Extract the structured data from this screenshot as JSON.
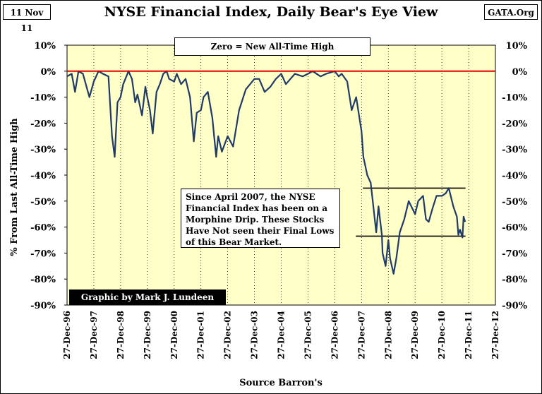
{
  "header": {
    "date": "11 Nov 11",
    "title": "NYSE Financial Index, Daily Bear's Eye View",
    "source_site": "GATA.Org"
  },
  "annotations": {
    "zero_note": "Zero = New All-Time High",
    "commentary": "Since April 2007, the NYSE Financial Index has been on a Morphine Drip. These Stocks Have Not seen their Final Lows of this Bear Market.",
    "credit": "Graphic by Mark J. Lundeen"
  },
  "colors": {
    "plot_background": "#ffffc8",
    "series": "#1f3a6b",
    "zero_line": "#e00000",
    "grid": "#000000"
  },
  "chart_data": {
    "type": "line",
    "title": "NYSE Financial Index, Daily Bear's Eye View",
    "ylabel": "% From Last All-Time High",
    "xlabel": "Source Barron's",
    "ylim": [
      -90,
      10
    ],
    "xlim": [
      "1996-12-27",
      "2012-12-27"
    ],
    "y_ticks": [
      "10%",
      "0%",
      "-10%",
      "-20%",
      "-30%",
      "-40%",
      "-50%",
      "-60%",
      "-70%",
      "-80%",
      "-90%"
    ],
    "x_ticks": [
      "27-Dec-96",
      "27-Dec-97",
      "27-Dec-98",
      "27-Dec-99",
      "27-Dec-00",
      "27-Dec-01",
      "27-Dec-02",
      "27-Dec-03",
      "27-Dec-04",
      "27-Dec-05",
      "27-Dec-06",
      "27-Dec-07",
      "27-Dec-08",
      "27-Dec-09",
      "27-Dec-10",
      "27-Dec-11",
      "27-Dec-12"
    ],
    "grid": "vertical dotted",
    "reference_lines": [
      {
        "y": 0,
        "color": "#e00000"
      },
      {
        "y": -45,
        "from": "2008-01-15",
        "to": "2011-11-15"
      },
      {
        "y": -63.5,
        "from": "2007-10-10",
        "to": "2011-11-15"
      }
    ],
    "series": [
      {
        "x": [
          "1996-12-27",
          "1997-03-01",
          "1997-04-15",
          "1997-06-01",
          "1997-08-01",
          "1997-10-28",
          "1997-12-27",
          "1998-03-01",
          "1998-05-01",
          "1998-07-15",
          "1998-09-01",
          "1998-10-08",
          "1998-11-15",
          "1998-12-27",
          "1999-02-01",
          "1999-04-15",
          "1999-06-01",
          "1999-07-15",
          "1999-08-15",
          "1999-10-15",
          "1999-12-01",
          "1999-12-27",
          "2000-02-01",
          "2000-03-10",
          "2000-05-01",
          "2000-06-15",
          "2000-08-01",
          "2000-09-15",
          "2000-10-20",
          "2000-12-27",
          "2001-02-01",
          "2001-04-01",
          "2001-06-01",
          "2001-08-01",
          "2001-09-21",
          "2001-11-01",
          "2001-12-27",
          "2002-02-01",
          "2002-04-01",
          "2002-06-01",
          "2002-07-23",
          "2002-08-20",
          "2002-10-09",
          "2002-12-27",
          "2003-03-11",
          "2003-06-01",
          "2003-09-01",
          "2003-12-27",
          "2004-03-01",
          "2004-05-15",
          "2004-08-01",
          "2004-10-15",
          "2004-12-27",
          "2005-03-01",
          "2005-05-01",
          "2005-07-01",
          "2005-10-15",
          "2005-12-27",
          "2006-03-01",
          "2006-06-15",
          "2006-09-01",
          "2006-12-27",
          "2007-02-20",
          "2007-04-01",
          "2007-06-15",
          "2007-08-15",
          "2007-10-15",
          "2007-12-27",
          "2008-01-22",
          "2008-03-15",
          "2008-05-01",
          "2008-07-15",
          "2008-08-15",
          "2008-09-30",
          "2008-10-10",
          "2008-11-20",
          "2008-12-27",
          "2009-01-20",
          "2009-03-09",
          "2009-04-15",
          "2009-06-01",
          "2009-08-01",
          "2009-10-01",
          "2009-12-27",
          "2010-02-08",
          "2010-04-15",
          "2010-05-25",
          "2010-07-01",
          "2010-08-20",
          "2010-10-15",
          "2010-12-27",
          "2011-02-18",
          "2011-04-01",
          "2011-06-01",
          "2011-07-20",
          "2011-08-10",
          "2011-09-01",
          "2011-10-04",
          "2011-10-20",
          "2011-11-10"
        ],
        "values": [
          -2,
          -1,
          -8,
          0,
          -1,
          -10,
          -4,
          0,
          -1,
          -2,
          -25,
          -33,
          -12,
          -10,
          -5,
          0,
          -3,
          -12,
          -9,
          -17,
          -6,
          -10,
          -15,
          -24,
          -8,
          -5,
          -1,
          0,
          -3,
          -4,
          -1,
          -5,
          -3,
          -10,
          -27,
          -16,
          -15,
          -10,
          -8,
          -18,
          -33,
          -25,
          -31,
          -25,
          -29,
          -15,
          -7,
          -3,
          -3,
          -8,
          -6,
          -3,
          -1,
          -5,
          -3,
          -1,
          -2,
          -1,
          0,
          -2,
          -1,
          0,
          -2,
          -1,
          -4,
          -15,
          -10,
          -23,
          -33,
          -40,
          -43,
          -62,
          -52,
          -63,
          -70,
          -75,
          -65,
          -72,
          -78,
          -72,
          -62,
          -57,
          -50,
          -55,
          -50,
          -48,
          -57,
          -58,
          -53,
          -48,
          -48,
          -47,
          -45,
          -52,
          -56,
          -63,
          -61,
          -64,
          -56,
          -58
        ]
      }
    ]
  }
}
